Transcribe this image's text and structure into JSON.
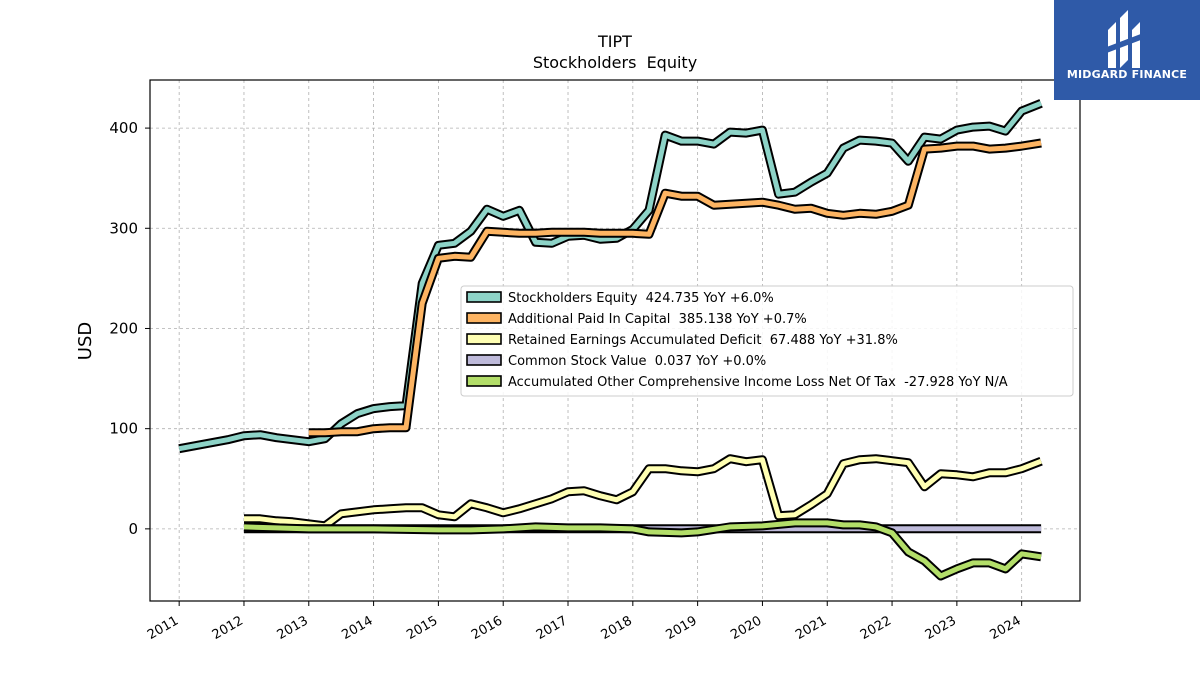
{
  "brand": {
    "name": "MIDGARD FINANCE",
    "background": "#2f5aa8",
    "icon": "midgard-logo-icon"
  },
  "chart_data": {
    "type": "line",
    "title": "TIPT",
    "subtitle": "Stockholders  Equity",
    "ylabel": "USD",
    "xlabel": "",
    "xlim": [
      2010.55,
      2024.9
    ],
    "ylim": [
      -72,
      448
    ],
    "xticks": [
      {
        "value": 2011,
        "label": "2011"
      },
      {
        "value": 2012,
        "label": "2012"
      },
      {
        "value": 2013,
        "label": "2013"
      },
      {
        "value": 2014,
        "label": "2014"
      },
      {
        "value": 2015,
        "label": "2015"
      },
      {
        "value": 2016,
        "label": "2016"
      },
      {
        "value": 2017,
        "label": "2017"
      },
      {
        "value": 2018,
        "label": "2018"
      },
      {
        "value": 2019,
        "label": "2019"
      },
      {
        "value": 2020,
        "label": "2020"
      },
      {
        "value": 2021,
        "label": "2021"
      },
      {
        "value": 2022,
        "label": "2022"
      },
      {
        "value": 2023,
        "label": "2023"
      },
      {
        "value": 2024,
        "label": "2024"
      }
    ],
    "yticks": [
      {
        "value": 0,
        "label": "0"
      },
      {
        "value": 100,
        "label": "100"
      },
      {
        "value": 200,
        "label": "200"
      },
      {
        "value": 300,
        "label": "300"
      },
      {
        "value": 400,
        "label": "400"
      }
    ],
    "grid": true,
    "legend_position": "center-right",
    "series": [
      {
        "name": "Stockholders Equity  424.735 YoY +6.0%",
        "color": "#8dd3c7",
        "points": [
          [
            2011.0,
            80
          ],
          [
            2011.25,
            83
          ],
          [
            2011.5,
            86
          ],
          [
            2011.75,
            89
          ],
          [
            2012.0,
            93
          ],
          [
            2012.25,
            94
          ],
          [
            2012.5,
            91
          ],
          [
            2012.75,
            89
          ],
          [
            2013.0,
            87
          ],
          [
            2013.25,
            90
          ],
          [
            2013.5,
            105
          ],
          [
            2013.75,
            115
          ],
          [
            2014.0,
            120
          ],
          [
            2014.25,
            122
          ],
          [
            2014.5,
            123
          ],
          [
            2014.75,
            245
          ],
          [
            2015.0,
            283
          ],
          [
            2015.25,
            285
          ],
          [
            2015.5,
            297
          ],
          [
            2015.75,
            319
          ],
          [
            2016.0,
            312
          ],
          [
            2016.25,
            318
          ],
          [
            2016.5,
            286
          ],
          [
            2016.75,
            285
          ],
          [
            2017.0,
            292
          ],
          [
            2017.25,
            293
          ],
          [
            2017.5,
            289
          ],
          [
            2017.75,
            290
          ],
          [
            2018.0,
            299
          ],
          [
            2018.25,
            318
          ],
          [
            2018.5,
            393
          ],
          [
            2018.75,
            387
          ],
          [
            2019.0,
            387
          ],
          [
            2019.25,
            384
          ],
          [
            2019.5,
            396
          ],
          [
            2019.75,
            395
          ],
          [
            2020.0,
            398
          ],
          [
            2020.25,
            334
          ],
          [
            2020.5,
            336
          ],
          [
            2020.75,
            346
          ],
          [
            2021.0,
            355
          ],
          [
            2021.25,
            380
          ],
          [
            2021.5,
            388
          ],
          [
            2021.75,
            387
          ],
          [
            2022.0,
            385
          ],
          [
            2022.25,
            367
          ],
          [
            2022.5,
            391
          ],
          [
            2022.75,
            389
          ],
          [
            2023.0,
            398
          ],
          [
            2023.25,
            401
          ],
          [
            2023.5,
            402
          ],
          [
            2023.75,
            397
          ],
          [
            2024.0,
            417
          ],
          [
            2024.3,
            424.735
          ]
        ]
      },
      {
        "name": "Additional Paid In Capital  385.138 YoY +0.7%",
        "color": "#fdb462",
        "points": [
          [
            2013.0,
            96
          ],
          [
            2013.25,
            96
          ],
          [
            2013.5,
            97
          ],
          [
            2013.75,
            97
          ],
          [
            2014.0,
            100
          ],
          [
            2014.25,
            101
          ],
          [
            2014.5,
            101
          ],
          [
            2014.75,
            225
          ],
          [
            2015.0,
            270
          ],
          [
            2015.25,
            272
          ],
          [
            2015.5,
            271
          ],
          [
            2015.75,
            297
          ],
          [
            2016.0,
            296
          ],
          [
            2016.25,
            295
          ],
          [
            2016.5,
            295
          ],
          [
            2016.75,
            296
          ],
          [
            2017.0,
            296
          ],
          [
            2017.25,
            296
          ],
          [
            2017.5,
            295
          ],
          [
            2017.75,
            295
          ],
          [
            2018.0,
            295
          ],
          [
            2018.25,
            294
          ],
          [
            2018.5,
            335
          ],
          [
            2018.75,
            332
          ],
          [
            2019.0,
            332
          ],
          [
            2019.25,
            323
          ],
          [
            2019.5,
            324
          ],
          [
            2019.75,
            325
          ],
          [
            2020.0,
            326
          ],
          [
            2020.25,
            323
          ],
          [
            2020.5,
            319
          ],
          [
            2020.75,
            320
          ],
          [
            2021.0,
            315
          ],
          [
            2021.25,
            313
          ],
          [
            2021.5,
            315
          ],
          [
            2021.75,
            314
          ],
          [
            2022.0,
            317
          ],
          [
            2022.25,
            323
          ],
          [
            2022.5,
            379
          ],
          [
            2022.75,
            380
          ],
          [
            2023.0,
            382
          ],
          [
            2023.25,
            382
          ],
          [
            2023.5,
            379
          ],
          [
            2023.75,
            380
          ],
          [
            2024.0,
            382
          ],
          [
            2024.3,
            385.138
          ]
        ]
      },
      {
        "name": "Retained Earnings Accumulated Deficit  67.488 YoY +31.8%",
        "color": "#ffffb3",
        "points": [
          [
            2012.0,
            10
          ],
          [
            2012.25,
            10
          ],
          [
            2012.5,
            8
          ],
          [
            2012.75,
            7
          ],
          [
            2013.0,
            5
          ],
          [
            2013.25,
            3
          ],
          [
            2013.5,
            15
          ],
          [
            2013.75,
            17
          ],
          [
            2014.0,
            19
          ],
          [
            2014.25,
            20
          ],
          [
            2014.5,
            21
          ],
          [
            2014.75,
            21
          ],
          [
            2015.0,
            14
          ],
          [
            2015.25,
            12
          ],
          [
            2015.5,
            25
          ],
          [
            2015.75,
            21
          ],
          [
            2016.0,
            16
          ],
          [
            2016.25,
            20
          ],
          [
            2016.5,
            25
          ],
          [
            2016.75,
            30
          ],
          [
            2017.0,
            37
          ],
          [
            2017.25,
            38
          ],
          [
            2017.5,
            33
          ],
          [
            2017.75,
            29
          ],
          [
            2018.0,
            37
          ],
          [
            2018.25,
            60
          ],
          [
            2018.5,
            60
          ],
          [
            2018.75,
            58
          ],
          [
            2019.0,
            57
          ],
          [
            2019.25,
            60
          ],
          [
            2019.5,
            70
          ],
          [
            2019.75,
            67
          ],
          [
            2020.0,
            69
          ],
          [
            2020.25,
            13
          ],
          [
            2020.5,
            14
          ],
          [
            2020.75,
            24
          ],
          [
            2021.0,
            35
          ],
          [
            2021.25,
            65
          ],
          [
            2021.5,
            69
          ],
          [
            2021.75,
            70
          ],
          [
            2022.0,
            68
          ],
          [
            2022.25,
            66
          ],
          [
            2022.5,
            42
          ],
          [
            2022.75,
            55
          ],
          [
            2023.0,
            54
          ],
          [
            2023.25,
            52
          ],
          [
            2023.5,
            56
          ],
          [
            2023.75,
            56
          ],
          [
            2024.0,
            60
          ],
          [
            2024.3,
            67.488
          ]
        ]
      },
      {
        "name": "Common Stock Value  0.037 YoY +0.0%",
        "color": "#bebada",
        "points": [
          [
            2012.0,
            0.03
          ],
          [
            2024.3,
            0.037
          ]
        ]
      },
      {
        "name": "Accumulated Other Comprehensive Income Loss Net Of Tax  -27.928 YoY N/A",
        "color": "#b3de69",
        "points": [
          [
            2012.0,
            2
          ],
          [
            2012.5,
            1
          ],
          [
            2013.0,
            0
          ],
          [
            2014.0,
            0
          ],
          [
            2015.0,
            -1
          ],
          [
            2015.5,
            -1
          ],
          [
            2016.0,
            0
          ],
          [
            2016.5,
            2
          ],
          [
            2017.0,
            1
          ],
          [
            2017.5,
            1
          ],
          [
            2018.0,
            0
          ],
          [
            2018.25,
            -3
          ],
          [
            2018.75,
            -4
          ],
          [
            2019.0,
            -3
          ],
          [
            2019.5,
            2
          ],
          [
            2020.0,
            3
          ],
          [
            2020.5,
            6
          ],
          [
            2021.0,
            6
          ],
          [
            2021.25,
            4
          ],
          [
            2021.5,
            4
          ],
          [
            2021.75,
            2
          ],
          [
            2022.0,
            -4
          ],
          [
            2022.25,
            -23
          ],
          [
            2022.5,
            -32
          ],
          [
            2022.75,
            -47
          ],
          [
            2023.0,
            -40
          ],
          [
            2023.25,
            -34
          ],
          [
            2023.5,
            -34
          ],
          [
            2023.75,
            -40
          ],
          [
            2024.0,
            -25
          ],
          [
            2024.3,
            -27.928
          ]
        ]
      }
    ]
  }
}
